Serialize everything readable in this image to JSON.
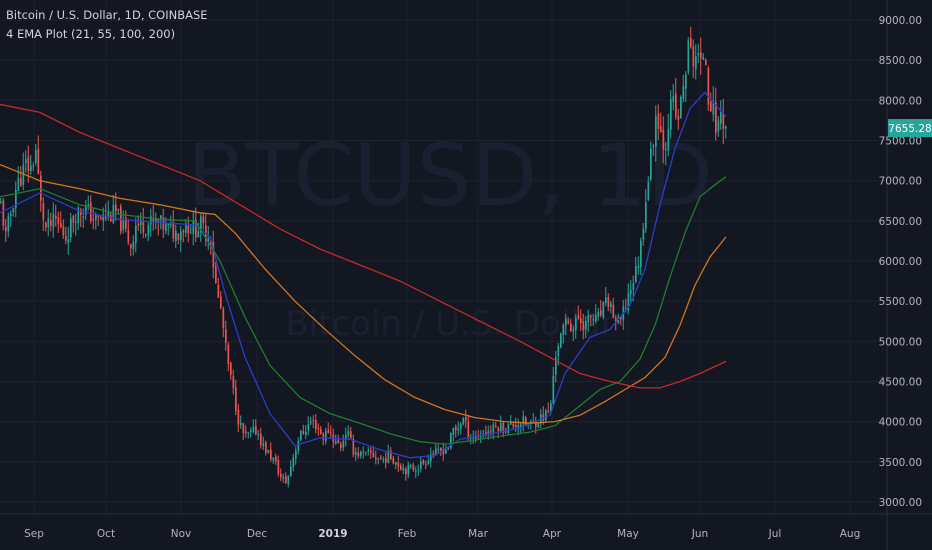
{
  "header": {
    "symbol_line": "Bitcoin / U.S. Dollar, 1D, COINBASE",
    "indicator_line": "4 EMA Plot (21, 55, 100, 200)"
  },
  "watermark": {
    "symbol": "BTCUSD, 1D",
    "sub": "Bitcoin / U.S. Dollar"
  },
  "colors": {
    "background": "#131722",
    "grid": "#1e2230",
    "axis_text": "#b2b5be",
    "candle_up": "#26a69a",
    "candle_down": "#ef5350",
    "ema21": "#2a3ec8",
    "ema55": "#1e7d2e",
    "ema100": "#d1761c",
    "ema200": "#c62828",
    "last_price_bg": "#26a69a"
  },
  "chart_data": {
    "type": "candlestick",
    "title": "Bitcoin / U.S. Dollar, 1D, COINBASE",
    "ylim": [
      2850,
      9250
    ],
    "y_ticks": [
      "9000.00",
      "8500.00",
      "8000.00",
      "7500.00",
      "7000.00",
      "6500.00",
      "6000.00",
      "5500.00",
      "5000.00",
      "4500.00",
      "4000.00",
      "3500.00",
      "3000.00"
    ],
    "y_tick_values": [
      9000,
      8500,
      8000,
      7500,
      7000,
      6500,
      6000,
      5500,
      5000,
      4500,
      4000,
      3500,
      3000
    ],
    "x_ticks": [
      "Sep",
      "Oct",
      "Nov",
      "Dec",
      "2019",
      "Feb",
      "Mar",
      "Apr",
      "May",
      "Jun",
      "Jul",
      "Aug"
    ],
    "x_tick_bold": [
      false,
      false,
      false,
      false,
      true,
      false,
      false,
      false,
      false,
      false,
      false,
      false
    ],
    "last_price": 7655.28,
    "last_price_label": "7655.28",
    "price_path": [
      [
        0,
        6700
      ],
      [
        5,
        6300
      ],
      [
        15,
        6900
      ],
      [
        25,
        7200
      ],
      [
        30,
        7150
      ],
      [
        35,
        7380
      ],
      [
        40,
        6700
      ],
      [
        45,
        6400
      ],
      [
        55,
        6500
      ],
      [
        65,
        6300
      ],
      [
        75,
        6600
      ],
      [
        85,
        6650
      ],
      [
        95,
        6500
      ],
      [
        105,
        6550
      ],
      [
        115,
        6600
      ],
      [
        125,
        6350
      ],
      [
        130,
        6200
      ],
      [
        135,
        6450
      ],
      [
        145,
        6450
      ],
      [
        155,
        6480
      ],
      [
        165,
        6420
      ],
      [
        175,
        6350
      ],
      [
        185,
        6450
      ],
      [
        195,
        6400
      ],
      [
        200,
        6450
      ],
      [
        205,
        6350
      ],
      [
        210,
        6300
      ],
      [
        213,
        5900
      ],
      [
        216,
        5600
      ],
      [
        220,
        5400
      ],
      [
        226,
        4800
      ],
      [
        232,
        4400
      ],
      [
        238,
        4000
      ],
      [
        244,
        3800
      ],
      [
        250,
        3850
      ],
      [
        256,
        3900
      ],
      [
        262,
        3700
      ],
      [
        268,
        3600
      ],
      [
        274,
        3500
      ],
      [
        280,
        3300
      ],
      [
        286,
        3250
      ],
      [
        292,
        3550
      ],
      [
        298,
        3800
      ],
      [
        304,
        3900
      ],
      [
        310,
        4000
      ],
      [
        316,
        3950
      ],
      [
        322,
        3800
      ],
      [
        328,
        3900
      ],
      [
        334,
        3750
      ],
      [
        340,
        3700
      ],
      [
        346,
        3900
      ],
      [
        352,
        3650
      ],
      [
        358,
        3600
      ],
      [
        364,
        3580
      ],
      [
        370,
        3600
      ],
      [
        376,
        3550
      ],
      [
        382,
        3520
      ],
      [
        388,
        3580
      ],
      [
        394,
        3520
      ],
      [
        400,
        3450
      ],
      [
        406,
        3400
      ],
      [
        412,
        3420
      ],
      [
        418,
        3450
      ],
      [
        424,
        3500
      ],
      [
        430,
        3600
      ],
      [
        436,
        3600
      ],
      [
        442,
        3650
      ],
      [
        448,
        3700
      ],
      [
        452,
        3900
      ],
      [
        456,
        3900
      ],
      [
        462,
        4050
      ],
      [
        468,
        3850
      ],
      [
        474,
        3800
      ],
      [
        480,
        3850
      ],
      [
        486,
        3880
      ],
      [
        492,
        3900
      ],
      [
        498,
        3950
      ],
      [
        504,
        3920
      ],
      [
        510,
        3950
      ],
      [
        516,
        3980
      ],
      [
        522,
        4000
      ],
      [
        528,
        3950
      ],
      [
        534,
        4000
      ],
      [
        540,
        4050
      ],
      [
        546,
        4100
      ],
      [
        550,
        4200
      ],
      [
        554,
        4800
      ],
      [
        558,
        5000
      ],
      [
        562,
        5100
      ],
      [
        566,
        5300
      ],
      [
        572,
        5150
      ],
      [
        578,
        5300
      ],
      [
        584,
        5200
      ],
      [
        590,
        5300
      ],
      [
        596,
        5250
      ],
      [
        602,
        5400
      ],
      [
        608,
        5500
      ],
      [
        612,
        5350
      ],
      [
        616,
        5200
      ],
      [
        620,
        5250
      ],
      [
        624,
        5400
      ],
      [
        628,
        5600
      ],
      [
        632,
        5750
      ],
      [
        636,
        5900
      ],
      [
        640,
        6200
      ],
      [
        644,
        6700
      ],
      [
        648,
        7100
      ],
      [
        652,
        7500
      ],
      [
        656,
        7900
      ],
      [
        660,
        7600
      ],
      [
        664,
        7400
      ],
      [
        668,
        7800
      ],
      [
        672,
        8000
      ],
      [
        676,
        7700
      ],
      [
        680,
        7950
      ],
      [
        684,
        8300
      ],
      [
        688,
        8700
      ],
      [
        692,
        8500
      ],
      [
        696,
        8600
      ],
      [
        700,
        8400
      ],
      [
        704,
        8700
      ],
      [
        708,
        8000
      ],
      [
        712,
        7900
      ],
      [
        716,
        7600
      ],
      [
        720,
        7850
      ],
      [
        724,
        7700
      ],
      [
        726,
        7650
      ]
    ],
    "series": [
      {
        "name": "EMA 21",
        "key": "ema21",
        "points": [
          [
            0,
            6600
          ],
          [
            40,
            6850
          ],
          [
            80,
            6620
          ],
          [
            120,
            6520
          ],
          [
            160,
            6480
          ],
          [
            195,
            6450
          ],
          [
            210,
            6300
          ],
          [
            225,
            5600
          ],
          [
            245,
            4800
          ],
          [
            270,
            4100
          ],
          [
            295,
            3700
          ],
          [
            320,
            3800
          ],
          [
            350,
            3780
          ],
          [
            380,
            3650
          ],
          [
            410,
            3550
          ],
          [
            435,
            3580
          ],
          [
            460,
            3780
          ],
          [
            490,
            3850
          ],
          [
            520,
            3920
          ],
          [
            550,
            4080
          ],
          [
            565,
            4600
          ],
          [
            590,
            5050
          ],
          [
            610,
            5150
          ],
          [
            630,
            5450
          ],
          [
            645,
            5900
          ],
          [
            660,
            6700
          ],
          [
            675,
            7400
          ],
          [
            690,
            7900
          ],
          [
            705,
            8100
          ],
          [
            715,
            7950
          ],
          [
            726,
            7800
          ]
        ]
      },
      {
        "name": "EMA 55",
        "key": "ema55",
        "points": [
          [
            0,
            6800
          ],
          [
            40,
            6900
          ],
          [
            80,
            6700
          ],
          [
            120,
            6580
          ],
          [
            160,
            6520
          ],
          [
            195,
            6500
          ],
          [
            220,
            6000
          ],
          [
            245,
            5300
          ],
          [
            270,
            4700
          ],
          [
            300,
            4300
          ],
          [
            330,
            4100
          ],
          [
            360,
            3980
          ],
          [
            390,
            3850
          ],
          [
            420,
            3750
          ],
          [
            445,
            3720
          ],
          [
            470,
            3760
          ],
          [
            500,
            3820
          ],
          [
            530,
            3870
          ],
          [
            555,
            3950
          ],
          [
            575,
            4150
          ],
          [
            600,
            4400
          ],
          [
            620,
            4500
          ],
          [
            640,
            4780
          ],
          [
            655,
            5200
          ],
          [
            670,
            5800
          ],
          [
            685,
            6350
          ],
          [
            700,
            6800
          ],
          [
            715,
            6950
          ],
          [
            726,
            7050
          ]
        ]
      },
      {
        "name": "EMA 100",
        "key": "ema100",
        "points": [
          [
            0,
            7200
          ],
          [
            40,
            7000
          ],
          [
            80,
            6900
          ],
          [
            120,
            6780
          ],
          [
            160,
            6700
          ],
          [
            200,
            6600
          ],
          [
            215,
            6580
          ],
          [
            235,
            6350
          ],
          [
            265,
            5900
          ],
          [
            295,
            5500
          ],
          [
            325,
            5150
          ],
          [
            355,
            4820
          ],
          [
            385,
            4520
          ],
          [
            415,
            4300
          ],
          [
            445,
            4150
          ],
          [
            475,
            4050
          ],
          [
            505,
            4000
          ],
          [
            530,
            3980
          ],
          [
            555,
            4000
          ],
          [
            580,
            4080
          ],
          [
            605,
            4250
          ],
          [
            625,
            4400
          ],
          [
            645,
            4550
          ],
          [
            665,
            4800
          ],
          [
            680,
            5200
          ],
          [
            695,
            5700
          ],
          [
            710,
            6050
          ],
          [
            726,
            6300
          ]
        ]
      },
      {
        "name": "EMA 200",
        "key": "ema200",
        "points": [
          [
            0,
            7950
          ],
          [
            40,
            7850
          ],
          [
            80,
            7600
          ],
          [
            120,
            7400
          ],
          [
            160,
            7200
          ],
          [
            200,
            7000
          ],
          [
            240,
            6700
          ],
          [
            280,
            6400
          ],
          [
            320,
            6150
          ],
          [
            360,
            5950
          ],
          [
            400,
            5750
          ],
          [
            440,
            5500
          ],
          [
            480,
            5250
          ],
          [
            520,
            5000
          ],
          [
            550,
            4800
          ],
          [
            580,
            4600
          ],
          [
            610,
            4500
          ],
          [
            640,
            4420
          ],
          [
            660,
            4420
          ],
          [
            680,
            4500
          ],
          [
            700,
            4600
          ],
          [
            726,
            4750
          ]
        ]
      }
    ]
  }
}
